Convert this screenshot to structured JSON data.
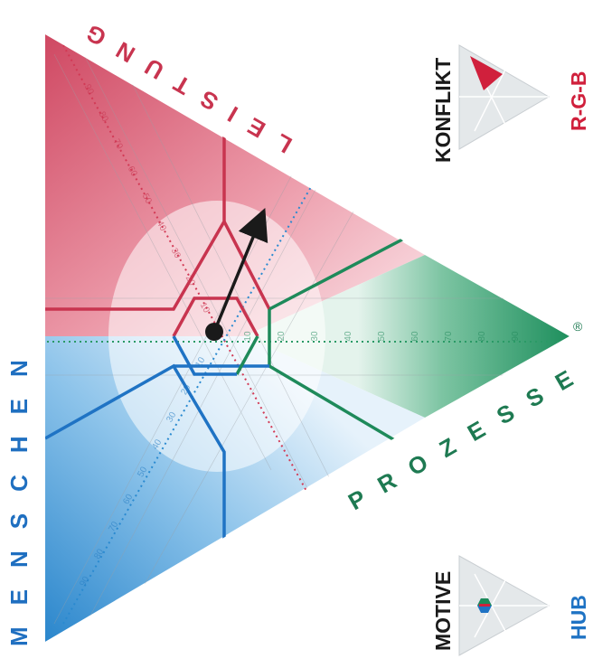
{
  "labels": {
    "leistung": "LEISTUNG",
    "menschen": "MENSCHEN",
    "prozesse": "PROZESSE",
    "registered": "®",
    "konflikt": "KONFLIKT",
    "rgb": "R-G-B",
    "motive": "MOTIVE",
    "hub": "HUB"
  },
  "scales": {
    "red_axis": [
      "10",
      "20",
      "30",
      "40",
      "50",
      "60",
      "70",
      "80",
      "90"
    ],
    "green_axis": [
      "10",
      "20",
      "30",
      "40",
      "50",
      "60",
      "70",
      "80",
      "90"
    ],
    "blue_axis": [
      "10",
      "20",
      "30",
      "40",
      "50",
      "60",
      "70",
      "80",
      "90"
    ]
  },
  "colors": {
    "red": "#d23a55",
    "green": "#1e8a5a",
    "blue": "#1f73c4",
    "leistung_text": "#c8344f",
    "menschen_text": "#1f6fc0",
    "prozesse_text": "#1e7a52",
    "arrow": "#1a1a1a"
  },
  "icons": {
    "konflikt_mark": "red-wedge-icon",
    "hub_mark": "hexagon-dot-icon"
  }
}
